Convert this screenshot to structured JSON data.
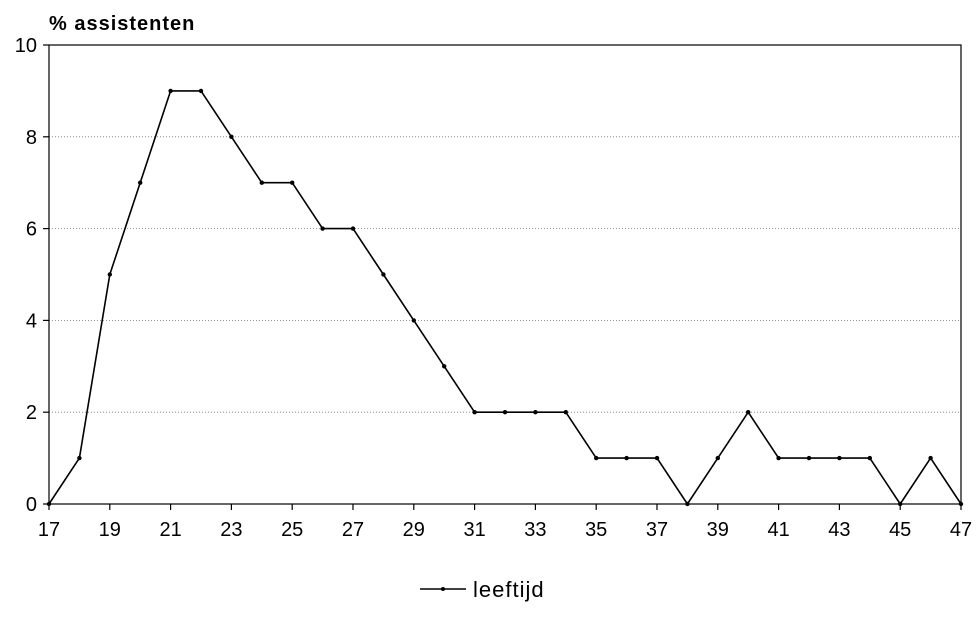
{
  "chart_data": {
    "type": "line",
    "ylabel": "% assistenten",
    "xlabel": "",
    "x": [
      17,
      18,
      19,
      20,
      21,
      22,
      23,
      24,
      25,
      26,
      27,
      28,
      29,
      30,
      31,
      32,
      33,
      34,
      35,
      36,
      37,
      38,
      39,
      40,
      41,
      42,
      43,
      44,
      45,
      46,
      47
    ],
    "series": [
      {
        "name": "leeftijd",
        "values": [
          0,
          1,
          5,
          7,
          9,
          9,
          8,
          7,
          7,
          6,
          6,
          5,
          4,
          3,
          2,
          2,
          2,
          2,
          1,
          1,
          1,
          0,
          1,
          2,
          1,
          1,
          1,
          1,
          0,
          1,
          0
        ]
      }
    ],
    "xlim": [
      17,
      47
    ],
    "ylim": [
      0,
      10
    ],
    "xticks": [
      "17",
      "19",
      "21",
      "23",
      "25",
      "27",
      "29",
      "31",
      "33",
      "35",
      "37",
      "39",
      "41",
      "43",
      "45",
      "47"
    ],
    "yticks": [
      "0",
      "2",
      "4",
      "6",
      "8",
      "10"
    ],
    "grid": "horizontal dotted",
    "legend_position": "bottom-center",
    "line_color": "#000000"
  }
}
